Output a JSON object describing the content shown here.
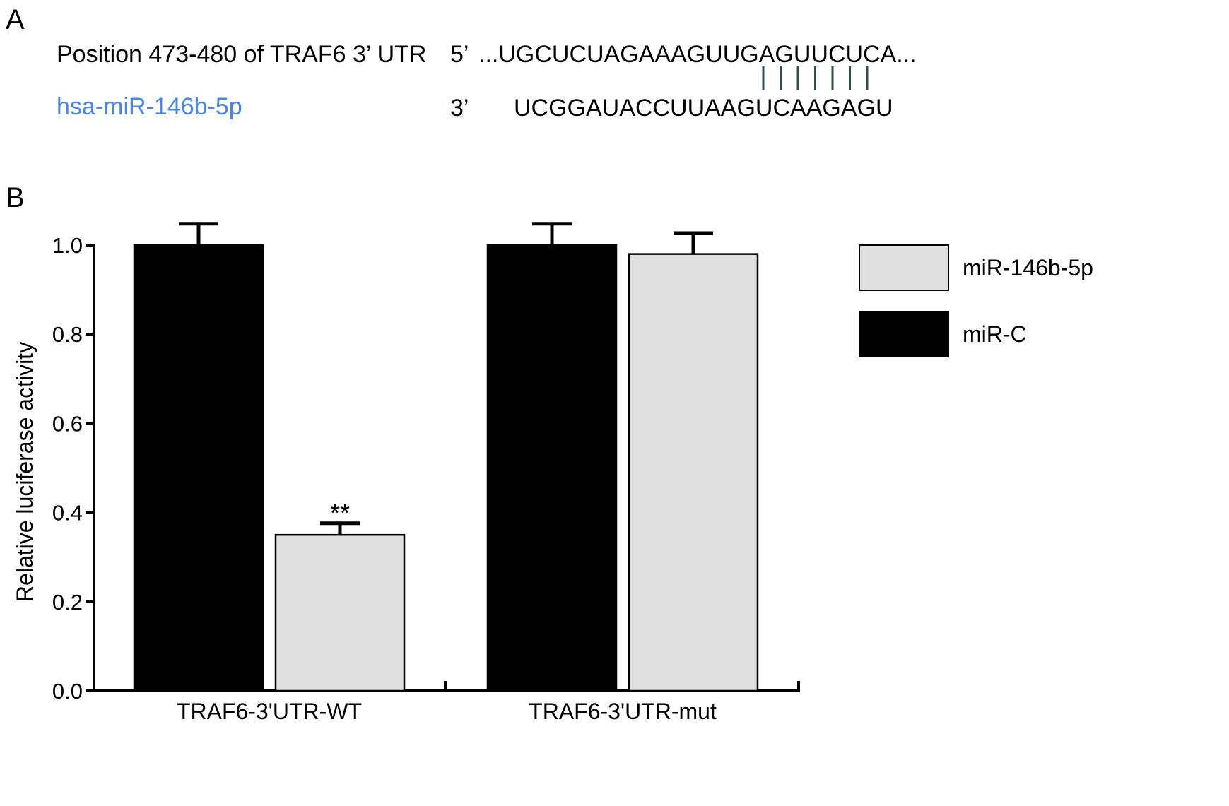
{
  "panel_a": {
    "letter": "A",
    "target_label": "Position 473-480 of TRAF6 3’ UTR",
    "target_end": "5’",
    "target_seq": "...UGCUCUAGAAAGUUGAGUUCUCA...",
    "mirna_label": "hsa-miR-146b-5p",
    "mirna_end": "3’",
    "mirna_seq": "UCGGAUACCUUAAGUCAAGAGU",
    "pair_lines": 7,
    "colors": {
      "mirna_label": "#4a86e8",
      "pair_lines": "#2f4f4f"
    }
  },
  "panel_b": {
    "letter": "B"
  },
  "chart_data": {
    "type": "bar",
    "categories": [
      "TRAF6-3'UTR-WT",
      "TRAF6-3'UTR-mut"
    ],
    "series": [
      {
        "name": "miR-C",
        "values": [
          1.0,
          1.0
        ],
        "errors": [
          0.048,
          0.048
        ],
        "color": "#000000"
      },
      {
        "name": "miR-146b-5p",
        "values": [
          0.35,
          0.98
        ],
        "errors": [
          0.026,
          0.047
        ],
        "color": "#e0e0e0"
      }
    ],
    "annotations": [
      {
        "category": 0,
        "series": 1,
        "text": "**"
      }
    ],
    "ylabel": "Relative luciferase activity",
    "xlabel": "",
    "ylim": [
      0,
      1.0
    ],
    "yticks": [
      "0.0",
      "0.2",
      "0.4",
      "0.6",
      "0.8",
      "1.0"
    ],
    "legend": {
      "placement": "right",
      "entries": [
        {
          "label": "miR-146b-5p",
          "color": "#e0e0e0"
        },
        {
          "label": "miR-C",
          "color": "#000000"
        }
      ]
    },
    "grid": false
  }
}
